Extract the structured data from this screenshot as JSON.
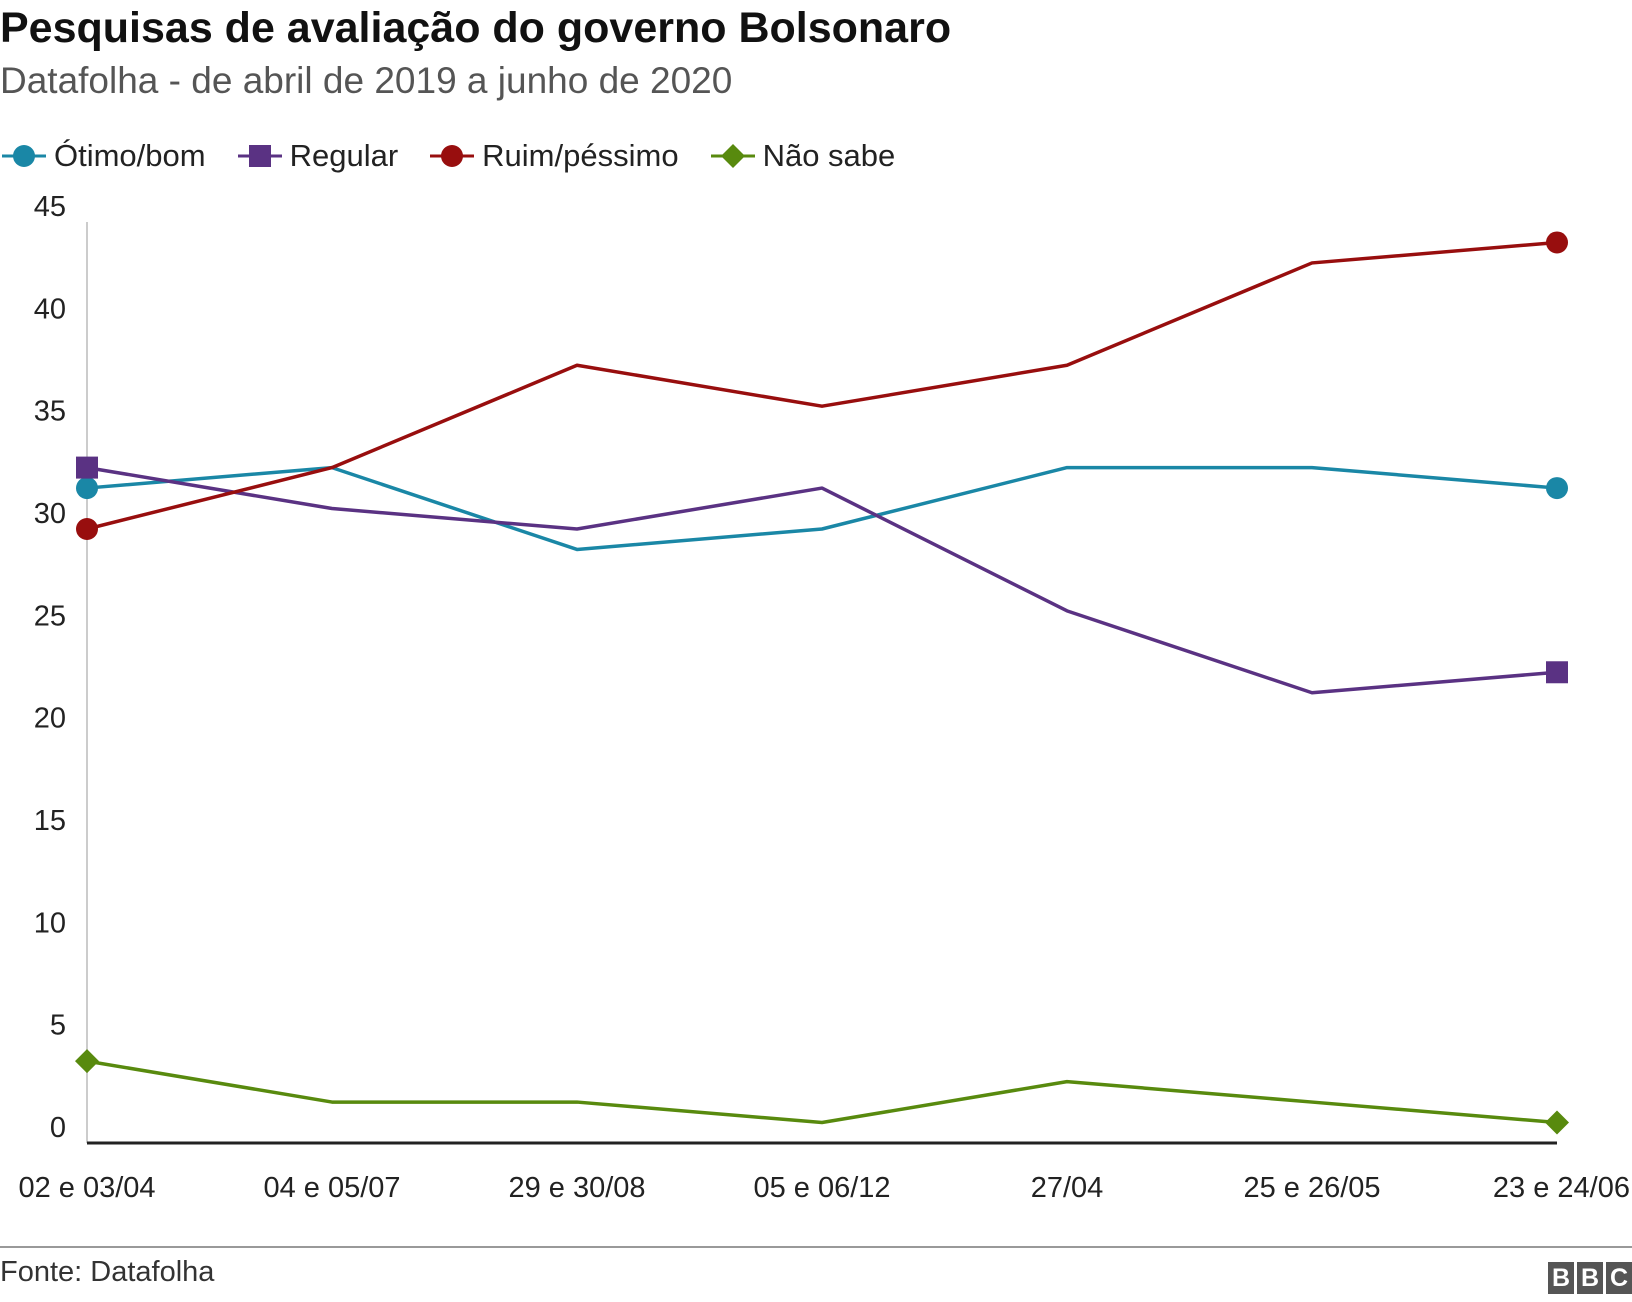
{
  "header": {
    "title": "Pesquisas de avaliação do governo Bolsonaro",
    "subtitle": "Datafolha - de abril de 2019 a junho de 2020"
  },
  "footer": {
    "source": "Fonte: Datafolha",
    "logo": "BBC",
    "logo_letters": [
      "B",
      "B",
      "C"
    ]
  },
  "colors": {
    "otimo_bom": "#1a87a6",
    "regular": "#5a3283",
    "ruim_pessimo": "#980e0e",
    "nao_sabe": "#588a0e",
    "axis": "#222222",
    "left_axis": "#cccccc"
  },
  "chart_data": {
    "type": "line",
    "title": "Pesquisas de avaliação do governo Bolsonaro",
    "subtitle": "Datafolha - de abril de 2019 a junho de 2020",
    "xlabel": "",
    "ylabel": "",
    "categories": [
      "02 e 03/04",
      "04 e 05/07",
      "29 e 30/08",
      "05 e 06/12",
      "27/04",
      "25 e 26/05",
      "23 e 24/06"
    ],
    "ylim": [
      0,
      45
    ],
    "yticks": [
      0,
      5,
      10,
      15,
      20,
      25,
      30,
      35,
      40,
      45
    ],
    "grid": false,
    "legend_position": "top-left",
    "series": [
      {
        "name": "Ótimo/bom",
        "color": "#1a87a6",
        "marker": "circle",
        "values": [
          32,
          33,
          29,
          30,
          33,
          33,
          32
        ]
      },
      {
        "name": "Regular",
        "color": "#5a3283",
        "marker": "square",
        "values": [
          33,
          31,
          30,
          32,
          26,
          22,
          23
        ]
      },
      {
        "name": "Ruim/péssimo",
        "color": "#980e0e",
        "marker": "circle",
        "values": [
          30,
          33,
          38,
          36,
          38,
          43,
          44
        ]
      },
      {
        "name": "Não sabe",
        "color": "#588a0e",
        "marker": "diamond",
        "values": [
          4,
          2,
          2,
          1,
          3,
          2,
          1
        ]
      }
    ]
  }
}
